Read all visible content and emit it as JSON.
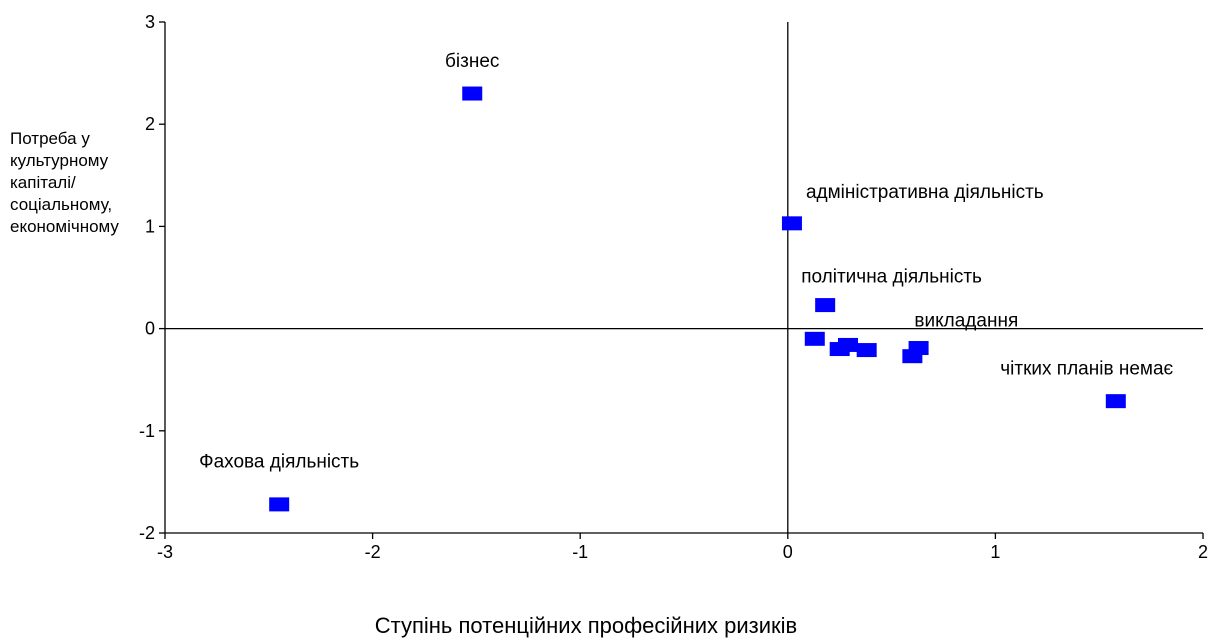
{
  "chart_data": {
    "type": "scatter",
    "title": "",
    "xlabel": "Ступінь потенційних професійних ризиків",
    "ylabel_lines": [
      "Потреба у",
      "культурному",
      "капіталі/",
      "соціальному,",
      "економічному"
    ],
    "xlim": [
      -3,
      2
    ],
    "ylim": [
      -2,
      3
    ],
    "x_ticks": [
      -3,
      -2,
      -1,
      0,
      1,
      2
    ],
    "y_ticks": [
      -2,
      -1,
      0,
      1,
      2,
      3
    ],
    "reference_lines": {
      "x": 0,
      "y": 0
    },
    "marker_color": "#0000ff",
    "marker": "square",
    "points": [
      {
        "x": -1.52,
        "y": 2.3
      },
      {
        "x": 0.02,
        "y": 1.03
      },
      {
        "x": 0.18,
        "y": 0.23
      },
      {
        "x": 0.13,
        "y": -0.1
      },
      {
        "x": 0.25,
        "y": -0.2
      },
      {
        "x": 0.29,
        "y": -0.16
      },
      {
        "x": 0.38,
        "y": -0.21
      },
      {
        "x": 0.6,
        "y": -0.27
      },
      {
        "x": 0.63,
        "y": -0.19
      },
      {
        "x": 1.58,
        "y": -0.71
      },
      {
        "x": -2.45,
        "y": -1.72
      }
    ],
    "annotations": [
      {
        "text": "бізнес",
        "x": -1.52,
        "y": 2.56
      },
      {
        "text": "адміністративна діяльність",
        "x": 0.66,
        "y": 1.28
      },
      {
        "text": "політична діяльність",
        "x": 0.5,
        "y": 0.45
      },
      {
        "text": "викладання",
        "x": 0.86,
        "y": 0.02
      },
      {
        "text": "чітких планів немає",
        "x": 1.44,
        "y": -0.45
      },
      {
        "text": "Фахова діяльність",
        "x": -2.45,
        "y": -1.36
      }
    ]
  }
}
